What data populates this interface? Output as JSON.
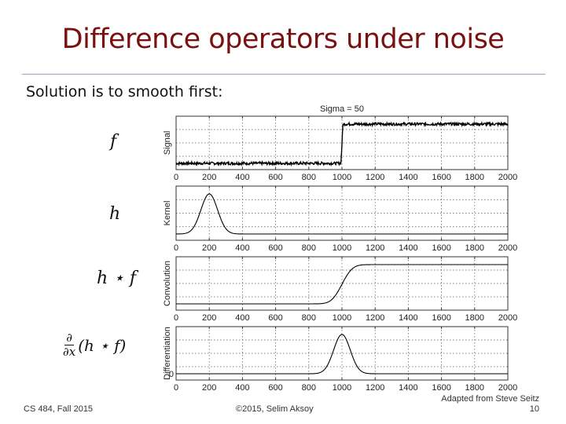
{
  "slide": {
    "title": "Difference operators under noise",
    "intro": "Solution is to smooth first:",
    "labels": {
      "f": "f",
      "h": "h",
      "conv": "h ⋆ f",
      "deriv_num": "∂",
      "deriv_den": "∂x",
      "deriv_rest": "(h ⋆ f)"
    },
    "footer": {
      "left": "CS 484, Fall 2015",
      "center": "©2015, Selim Aksoy",
      "right_line1": "Adapted from Steve Seitz",
      "right_line2": "10"
    }
  },
  "chart_data": [
    {
      "type": "line",
      "title": "Sigma = 50",
      "ylabel": "Signal",
      "xlim": [
        0,
        2000
      ],
      "xticks": [
        0,
        200,
        400,
        600,
        800,
        1000,
        1200,
        1400,
        1600,
        1800,
        2000
      ],
      "grid": true,
      "series": [
        {
          "name": "Signal",
          "shape": "noisy step",
          "step_at": 1000,
          "low_level": 0.0,
          "high_level": 1.0,
          "noise": "small"
        }
      ]
    },
    {
      "type": "line",
      "title": "",
      "ylabel": "Kernel",
      "xlim": [
        0,
        2000
      ],
      "xticks": [
        0,
        200,
        400,
        600,
        800,
        1000,
        1200,
        1400,
        1600,
        1800,
        2000
      ],
      "grid": true,
      "series": [
        {
          "name": "Kernel",
          "shape": "gaussian",
          "center": 200,
          "sigma": 50
        }
      ]
    },
    {
      "type": "line",
      "title": "",
      "ylabel": "Convolution",
      "xlim": [
        0,
        2000
      ],
      "xticks": [
        0,
        200,
        400,
        600,
        800,
        1000,
        1200,
        1400,
        1600,
        1800,
        2000
      ],
      "grid": true,
      "series": [
        {
          "name": "Convolution",
          "shape": "smooth step",
          "step_at": 1000,
          "sigma": 50
        }
      ]
    },
    {
      "type": "line",
      "title": "",
      "ylabel": "Differentiation",
      "xlim": [
        0,
        2000
      ],
      "xticks": [
        0,
        200,
        400,
        600,
        800,
        1000,
        1200,
        1400,
        1600,
        1800,
        2000
      ],
      "yticks": [
        0
      ],
      "grid": true,
      "series": [
        {
          "name": "Differentiation",
          "shape": "gaussian",
          "center": 1000,
          "sigma": 50
        }
      ]
    }
  ]
}
